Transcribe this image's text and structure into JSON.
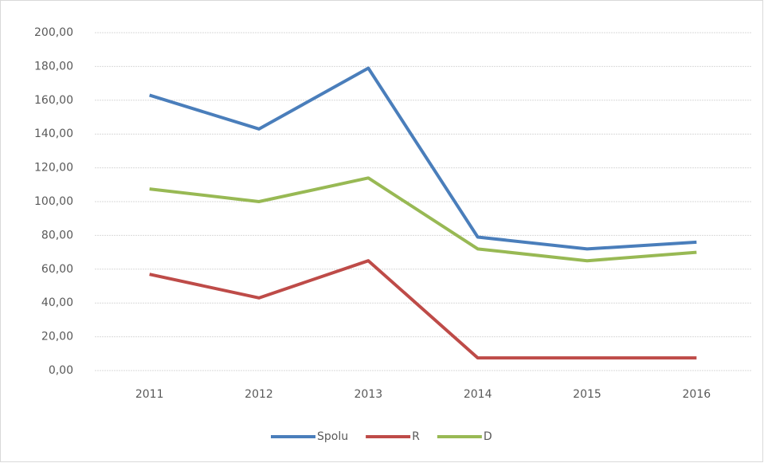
{
  "chart_data": {
    "type": "line",
    "categories": [
      "2011",
      "2012",
      "2013",
      "2014",
      "2015",
      "2016"
    ],
    "series": [
      {
        "name": "Spolu",
        "color": "#4a7ebb",
        "values": [
          163,
          143,
          179,
          79,
          72,
          76
        ]
      },
      {
        "name": "R",
        "color": "#be4b48",
        "values": [
          57,
          43,
          65,
          7.5,
          7.5,
          7.5
        ]
      },
      {
        "name": "D",
        "color": "#98b954",
        "values": [
          107.5,
          100,
          114,
          72,
          65,
          70
        ]
      }
    ],
    "ylim": [
      0,
      200
    ],
    "yticks": [
      {
        "value": 0,
        "label": "0,00"
      },
      {
        "value": 20,
        "label": "20,00"
      },
      {
        "value": 40,
        "label": "40,00"
      },
      {
        "value": 60,
        "label": "60,00"
      },
      {
        "value": 80,
        "label": "80,00"
      },
      {
        "value": 100,
        "label": "100,00"
      },
      {
        "value": 120,
        "label": "120,00"
      },
      {
        "value": 140,
        "label": "140,00"
      },
      {
        "value": 160,
        "label": "160,00"
      },
      {
        "value": 180,
        "label": "180,00"
      },
      {
        "value": 200,
        "label": "200,00"
      }
    ],
    "grid": true,
    "legend": "bottom"
  }
}
